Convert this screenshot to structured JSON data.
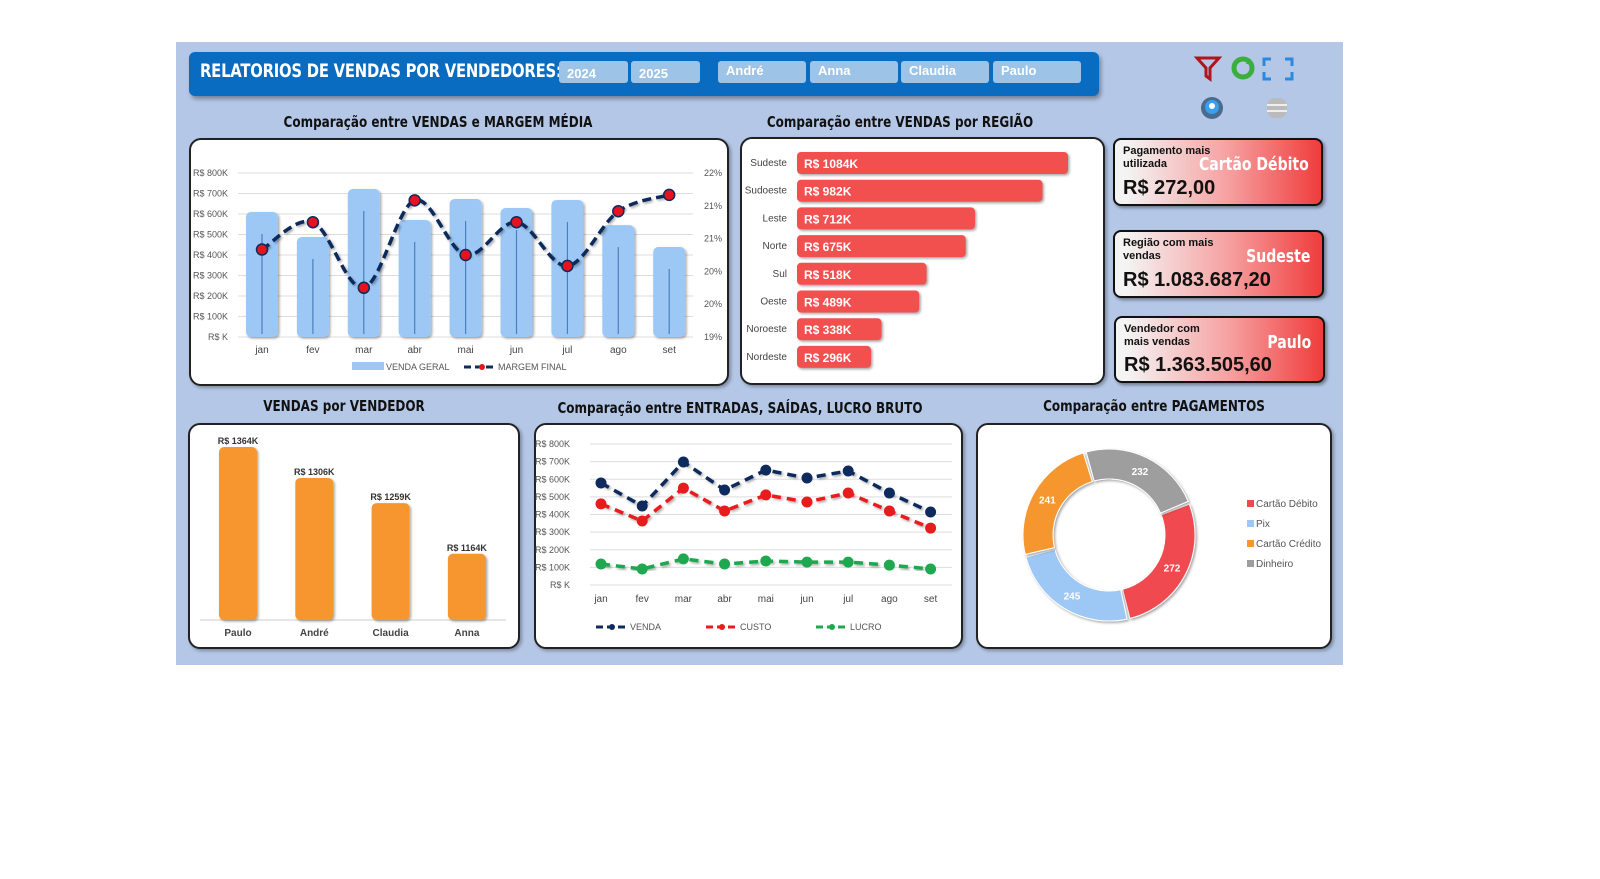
{
  "header": {
    "title": "RELATORIOS DE VENDAS POR VENDEDORES:",
    "years": [
      "2024",
      "2025"
    ],
    "vendors": [
      "André",
      "Anna",
      "Claudia",
      "Paulo"
    ]
  },
  "toolbar": {
    "icons": [
      "filter-icon",
      "refresh-icon",
      "fullscreen-icon",
      "settings-icon",
      "database-icon"
    ]
  },
  "kpis": [
    {
      "label": "Pagamento mais utilizada",
      "highlight": "Cartão Débito",
      "value": "R$ 272,00"
    },
    {
      "label": "Região com mais vendas",
      "highlight": "Sudeste",
      "value": "R$ 1.083.687,20"
    },
    {
      "label": "Vendedor com mais vendas",
      "highlight": "Paulo",
      "value": "R$ 1.363.505,60"
    }
  ],
  "chart_data": [
    {
      "type": "bar+line",
      "title": "Comparação entre VENDAS e MARGEM MÉDIA",
      "categories": [
        "jan",
        "fev",
        "mar",
        "abr",
        "mai",
        "jun",
        "jul",
        "ago",
        "set"
      ],
      "y_ticks": [
        "R$ K",
        "R$ 100K",
        "R$ 200K",
        "R$ 300K",
        "R$ 400K",
        "R$ 500K",
        "R$ 600K",
        "R$ 700K",
        "R$ 800K"
      ],
      "y2_ticks": [
        "19%",
        "20%",
        "20%",
        "21%",
        "21%",
        "22%"
      ],
      "ylim": [
        0,
        800
      ],
      "y2lim": [
        19,
        22
      ],
      "series": [
        {
          "name": "VENDA GERAL",
          "values": [
            610,
            488,
            722,
            571,
            673,
            629,
            668,
            546,
            439
          ],
          "color": "#9dc8f5"
        },
        {
          "name": "MARGEM FINAL",
          "values": [
            20.6,
            21.1,
            19.9,
            21.5,
            20.5,
            21.1,
            20.3,
            21.3,
            21.6
          ],
          "color": "#0f2a5c"
        }
      ],
      "grid": true,
      "legend": "bottom"
    },
    {
      "type": "bar-horizontal",
      "title": "Comparação entre VENDAS por REGIÃO",
      "categories": [
        "Sudeste",
        "Sudoeste",
        "Leste",
        "Norte",
        "Sul",
        "Oeste",
        "Noroeste",
        "Nordeste"
      ],
      "values": [
        1084,
        982,
        712,
        675,
        518,
        489,
        338,
        296
      ],
      "labels": [
        "R$ 1084K",
        "R$ 982K",
        "R$ 712K",
        "R$ 675K",
        "R$ 518K",
        "R$ 489K",
        "R$ 338K",
        "R$ 296K"
      ],
      "color": "#f25050"
    },
    {
      "type": "bar",
      "title": "VENDAS por VENDEDOR",
      "categories": [
        "Paulo",
        "André",
        "Claudia",
        "Anna"
      ],
      "values": [
        1364,
        1306,
        1259,
        1164
      ],
      "labels": [
        "R$ 1364K",
        "R$ 1306K",
        "R$ 1259K",
        "R$ 1164K"
      ],
      "ylim": [
        1040,
        1380
      ],
      "color": "#f7962d"
    },
    {
      "type": "line",
      "title": "Comparação entre ENTRADAS, SAÍDAS, LUCRO BRUTO",
      "categories": [
        "jan",
        "fev",
        "mar",
        "abr",
        "mai",
        "jun",
        "jul",
        "ago",
        "set"
      ],
      "y_ticks": [
        "R$ K",
        "R$ 100K",
        "R$ 200K",
        "R$ 300K",
        "R$ 400K",
        "R$ 500K",
        "R$ 600K",
        "R$ 700K",
        "R$ 800K"
      ],
      "ylim": [
        0,
        800
      ],
      "series": [
        {
          "name": "VENDA",
          "values": [
            579,
            448,
            698,
            539,
            652,
            607,
            647,
            522,
            414
          ],
          "color": "#0f2a5c"
        },
        {
          "name": "CUSTO",
          "values": [
            460,
            363,
            550,
            420,
            511,
            471,
            522,
            420,
            323
          ],
          "color": "#e81c1c"
        },
        {
          "name": "LUCRO",
          "values": [
            119,
            91,
            148,
            119,
            136,
            130,
            130,
            113,
            91
          ],
          "color": "#1fa84f"
        }
      ],
      "grid": true,
      "legend": "bottom"
    },
    {
      "type": "pie",
      "title": "Comparação entre PAGAMENTOS",
      "categories": [
        "Cartão Débito",
        "Pix",
        "Cartão Crédito",
        "Dinheiro"
      ],
      "values": [
        272,
        245,
        241,
        232
      ],
      "colors": [
        "#f04a4f",
        "#9dc8f5",
        "#f5962f",
        "#9e9e9e"
      ],
      "legend": "right"
    }
  ]
}
